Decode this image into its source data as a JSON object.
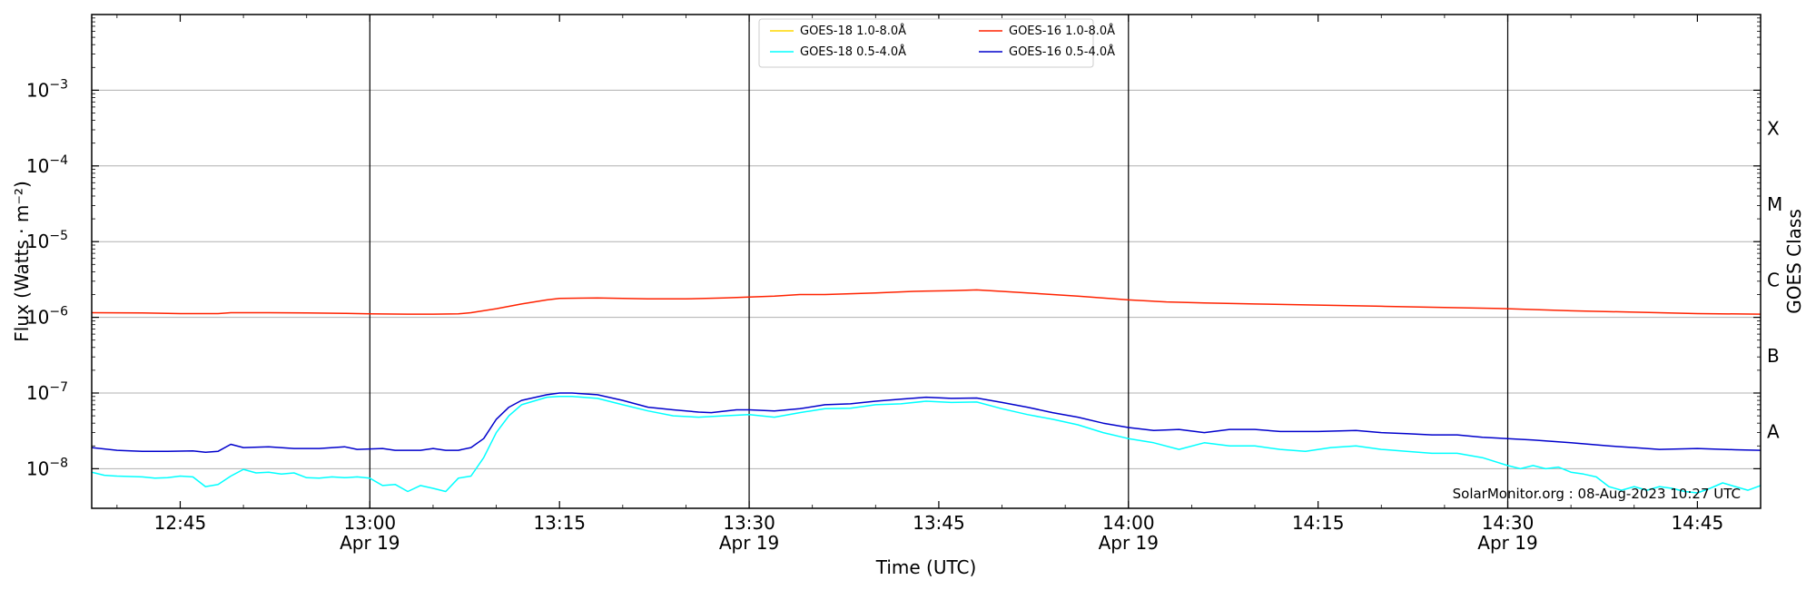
{
  "chart_data": {
    "type": "line",
    "xlabel": "Time (UTC)",
    "ylabel": "Flux (Watts · m⁻²)",
    "right_label": "GOES Class",
    "credit": "SolarMonitor.org : 08-Aug-2023 10:27 UTC",
    "grid": true,
    "x_range": [
      "12:38",
      "14:50"
    ],
    "y_scale": "log",
    "y_range": [
      3e-09,
      0.01
    ],
    "y_ticks": [
      {
        "value": 1e-08,
        "mant": "10",
        "exp": "−8"
      },
      {
        "value": 1e-07,
        "mant": "10",
        "exp": "−7"
      },
      {
        "value": 1e-06,
        "mant": "10",
        "exp": "−6"
      },
      {
        "value": 1e-05,
        "mant": "10",
        "exp": "−5"
      },
      {
        "value": 0.0001,
        "mant": "10",
        "exp": "−4"
      },
      {
        "value": 0.001,
        "mant": "10",
        "exp": "−3"
      }
    ],
    "x_ticks": [
      {
        "time": "12:45",
        "label": "12:45",
        "date": ""
      },
      {
        "time": "13:00",
        "label": "13:00",
        "date": "Apr 19"
      },
      {
        "time": "13:15",
        "label": "13:15",
        "date": ""
      },
      {
        "time": "13:30",
        "label": "13:30",
        "date": "Apr 19"
      },
      {
        "time": "13:45",
        "label": "13:45",
        "date": ""
      },
      {
        "time": "14:00",
        "label": "14:00",
        "date": "Apr 19"
      },
      {
        "time": "14:15",
        "label": "14:15",
        "date": ""
      },
      {
        "time": "14:30",
        "label": "14:30",
        "date": "Apr 19"
      },
      {
        "time": "14:45",
        "label": "14:45",
        "date": ""
      }
    ],
    "vlines": [
      "13:00",
      "13:30",
      "14:00",
      "14:30"
    ],
    "goes_classes": [
      {
        "label": "A",
        "value": 3.2e-08
      },
      {
        "label": "B",
        "value": 3.2e-07
      },
      {
        "label": "C",
        "value": 3.2e-06
      },
      {
        "label": "M",
        "value": 3.2e-05
      },
      {
        "label": "X",
        "value": 0.00032
      }
    ],
    "legend_position": "top-center",
    "legend": [
      {
        "name": "GOES-18 1.0-8.0Å",
        "color": "#ffd700"
      },
      {
        "name": "GOES-18 0.5-4.0Å",
        "color": "#00ffff"
      },
      {
        "name": "GOES-16 1.0-8.0Å",
        "color": "#ff2200"
      },
      {
        "name": "GOES-16 0.5-4.0Å",
        "color": "#0000cc"
      }
    ],
    "series": [
      {
        "name": "GOES-16 1.0-8.0Å",
        "color": "#ff2200",
        "points": [
          [
            "12:38",
            1.15e-06
          ],
          [
            "12:42",
            1.14e-06
          ],
          [
            "12:45",
            1.12e-06
          ],
          [
            "12:48",
            1.12e-06
          ],
          [
            "12:49",
            1.15e-06
          ],
          [
            "12:52",
            1.15e-06
          ],
          [
            "12:55",
            1.14e-06
          ],
          [
            "12:58",
            1.13e-06
          ],
          [
            "13:00",
            1.11e-06
          ],
          [
            "13:03",
            1.1e-06
          ],
          [
            "13:05",
            1.1e-06
          ],
          [
            "13:07",
            1.11e-06
          ],
          [
            "13:08",
            1.15e-06
          ],
          [
            "13:10",
            1.3e-06
          ],
          [
            "13:12",
            1.5e-06
          ],
          [
            "13:14",
            1.7e-06
          ],
          [
            "13:15",
            1.78e-06
          ],
          [
            "13:18",
            1.8e-06
          ],
          [
            "13:20",
            1.78e-06
          ],
          [
            "13:22",
            1.75e-06
          ],
          [
            "13:25",
            1.75e-06
          ],
          [
            "13:28",
            1.8e-06
          ],
          [
            "13:30",
            1.85e-06
          ],
          [
            "13:32",
            1.9e-06
          ],
          [
            "13:34",
            2e-06
          ],
          [
            "13:36",
            2e-06
          ],
          [
            "13:38",
            2.05e-06
          ],
          [
            "13:40",
            2.1e-06
          ],
          [
            "13:43",
            2.2e-06
          ],
          [
            "13:46",
            2.25e-06
          ],
          [
            "13:48",
            2.3e-06
          ],
          [
            "13:50",
            2.2e-06
          ],
          [
            "13:53",
            2.05e-06
          ],
          [
            "13:56",
            1.9e-06
          ],
          [
            "14:00",
            1.7e-06
          ],
          [
            "14:03",
            1.6e-06
          ],
          [
            "14:06",
            1.55e-06
          ],
          [
            "14:10",
            1.5e-06
          ],
          [
            "14:15",
            1.45e-06
          ],
          [
            "14:20",
            1.4e-06
          ],
          [
            "14:25",
            1.35e-06
          ],
          [
            "14:30",
            1.3e-06
          ],
          [
            "14:35",
            1.22e-06
          ],
          [
            "14:40",
            1.17e-06
          ],
          [
            "14:45",
            1.12e-06
          ],
          [
            "14:50",
            1.1e-06
          ]
        ]
      },
      {
        "name": "GOES-16 0.5-4.0Å",
        "color": "#0000cc",
        "points": [
          [
            "12:38",
            1.9e-08
          ],
          [
            "12:40",
            1.75e-08
          ],
          [
            "12:42",
            1.7e-08
          ],
          [
            "12:44",
            1.7e-08
          ],
          [
            "12:46",
            1.72e-08
          ],
          [
            "12:47",
            1.65e-08
          ],
          [
            "12:48",
            1.7e-08
          ],
          [
            "12:49",
            2.1e-08
          ],
          [
            "12:50",
            1.9e-08
          ],
          [
            "12:52",
            1.95e-08
          ],
          [
            "12:54",
            1.85e-08
          ],
          [
            "12:56",
            1.85e-08
          ],
          [
            "12:58",
            1.95e-08
          ],
          [
            "12:59",
            1.8e-08
          ],
          [
            "13:01",
            1.85e-08
          ],
          [
            "13:02",
            1.75e-08
          ],
          [
            "13:04",
            1.75e-08
          ],
          [
            "13:05",
            1.85e-08
          ],
          [
            "13:06",
            1.75e-08
          ],
          [
            "13:07",
            1.75e-08
          ],
          [
            "13:08",
            1.9e-08
          ],
          [
            "13:09",
            2.5e-08
          ],
          [
            "13:10",
            4.5e-08
          ],
          [
            "13:11",
            6.5e-08
          ],
          [
            "13:12",
            8e-08
          ],
          [
            "13:14",
            9.5e-08
          ],
          [
            "13:15",
            1e-07
          ],
          [
            "13:16",
            1e-07
          ],
          [
            "13:18",
            9.5e-08
          ],
          [
            "13:20",
            8e-08
          ],
          [
            "13:22",
            6.5e-08
          ],
          [
            "13:24",
            6e-08
          ],
          [
            "13:26",
            5.6e-08
          ],
          [
            "13:27",
            5.5e-08
          ],
          [
            "13:29",
            6e-08
          ],
          [
            "13:30",
            6e-08
          ],
          [
            "13:32",
            5.8e-08
          ],
          [
            "13:34",
            6.2e-08
          ],
          [
            "13:36",
            7e-08
          ],
          [
            "13:38",
            7.2e-08
          ],
          [
            "13:40",
            7.8e-08
          ],
          [
            "13:42",
            8.3e-08
          ],
          [
            "13:44",
            8.8e-08
          ],
          [
            "13:46",
            8.5e-08
          ],
          [
            "13:48",
            8.6e-08
          ],
          [
            "13:50",
            7.5e-08
          ],
          [
            "13:52",
            6.5e-08
          ],
          [
            "13:54",
            5.5e-08
          ],
          [
            "13:56",
            4.8e-08
          ],
          [
            "13:58",
            4e-08
          ],
          [
            "14:00",
            3.5e-08
          ],
          [
            "14:02",
            3.2e-08
          ],
          [
            "14:04",
            3.3e-08
          ],
          [
            "14:06",
            3e-08
          ],
          [
            "14:08",
            3.3e-08
          ],
          [
            "14:10",
            3.3e-08
          ],
          [
            "14:12",
            3.1e-08
          ],
          [
            "14:15",
            3.1e-08
          ],
          [
            "14:18",
            3.2e-08
          ],
          [
            "14:20",
            3e-08
          ],
          [
            "14:22",
            2.9e-08
          ],
          [
            "14:24",
            2.8e-08
          ],
          [
            "14:26",
            2.8e-08
          ],
          [
            "14:28",
            2.6e-08
          ],
          [
            "14:30",
            2.5e-08
          ],
          [
            "14:32",
            2.4e-08
          ],
          [
            "14:35",
            2.2e-08
          ],
          [
            "14:38",
            2e-08
          ],
          [
            "14:40",
            1.9e-08
          ],
          [
            "14:42",
            1.8e-08
          ],
          [
            "14:45",
            1.85e-08
          ],
          [
            "14:48",
            1.78e-08
          ],
          [
            "14:50",
            1.75e-08
          ]
        ]
      },
      {
        "name": "GOES-18 0.5-4.0Å",
        "color": "#00ffff",
        "points": [
          [
            "12:38",
            9e-09
          ],
          [
            "12:39",
            8.2e-09
          ],
          [
            "12:40",
            8e-09
          ],
          [
            "12:42",
            7.8e-09
          ],
          [
            "12:43",
            7.5e-09
          ],
          [
            "12:44",
            7.6e-09
          ],
          [
            "12:45",
            8e-09
          ],
          [
            "12:46",
            7.8e-09
          ],
          [
            "12:47",
            5.8e-09
          ],
          [
            "12:48",
            6.2e-09
          ],
          [
            "12:49",
            8e-09
          ],
          [
            "12:50",
            9.8e-09
          ],
          [
            "12:51",
            8.8e-09
          ],
          [
            "12:52",
            9e-09
          ],
          [
            "12:53",
            8.5e-09
          ],
          [
            "12:54",
            8.8e-09
          ],
          [
            "12:55",
            7.6e-09
          ],
          [
            "12:56",
            7.5e-09
          ],
          [
            "12:57",
            7.8e-09
          ],
          [
            "12:58",
            7.6e-09
          ],
          [
            "12:59",
            7.8e-09
          ],
          [
            "13:00",
            7.5e-09
          ],
          [
            "13:01",
            6e-09
          ],
          [
            "13:02",
            6.2e-09
          ],
          [
            "13:03",
            5e-09
          ],
          [
            "13:04",
            6e-09
          ],
          [
            "13:05",
            5.5e-09
          ],
          [
            "13:06",
            5e-09
          ],
          [
            "13:07",
            7.5e-09
          ],
          [
            "13:08",
            8e-09
          ],
          [
            "13:09",
            1.4e-08
          ],
          [
            "13:10",
            3e-08
          ],
          [
            "13:11",
            5e-08
          ],
          [
            "13:12",
            7e-08
          ],
          [
            "13:14",
            8.8e-08
          ],
          [
            "13:15",
            9e-08
          ],
          [
            "13:16",
            9e-08
          ],
          [
            "13:18",
            8.5e-08
          ],
          [
            "13:20",
            7e-08
          ],
          [
            "13:22",
            5.8e-08
          ],
          [
            "13:24",
            5e-08
          ],
          [
            "13:26",
            4.8e-08
          ],
          [
            "13:28",
            5e-08
          ],
          [
            "13:30",
            5.2e-08
          ],
          [
            "13:32",
            4.8e-08
          ],
          [
            "13:34",
            5.5e-08
          ],
          [
            "13:36",
            6.2e-08
          ],
          [
            "13:38",
            6.3e-08
          ],
          [
            "13:40",
            7e-08
          ],
          [
            "13:42",
            7.2e-08
          ],
          [
            "13:44",
            7.8e-08
          ],
          [
            "13:46",
            7.5e-08
          ],
          [
            "13:48",
            7.6e-08
          ],
          [
            "13:50",
            6.2e-08
          ],
          [
            "13:52",
            5.2e-08
          ],
          [
            "13:54",
            4.5e-08
          ],
          [
            "13:56",
            3.8e-08
          ],
          [
            "13:58",
            3e-08
          ],
          [
            "14:00",
            2.5e-08
          ],
          [
            "14:02",
            2.2e-08
          ],
          [
            "14:04",
            1.8e-08
          ],
          [
            "14:06",
            2.2e-08
          ],
          [
            "14:08",
            2e-08
          ],
          [
            "14:10",
            2e-08
          ],
          [
            "14:12",
            1.8e-08
          ],
          [
            "14:14",
            1.7e-08
          ],
          [
            "14:16",
            1.9e-08
          ],
          [
            "14:18",
            2e-08
          ],
          [
            "14:20",
            1.8e-08
          ],
          [
            "14:22",
            1.7e-08
          ],
          [
            "14:24",
            1.6e-08
          ],
          [
            "14:26",
            1.6e-08
          ],
          [
            "14:28",
            1.4e-08
          ],
          [
            "14:30",
            1.1e-08
          ],
          [
            "14:31",
            1e-08
          ],
          [
            "14:32",
            1.1e-08
          ],
          [
            "14:33",
            1e-08
          ],
          [
            "14:34",
            1.05e-08
          ],
          [
            "14:35",
            9e-09
          ],
          [
            "14:36",
            8.5e-09
          ],
          [
            "14:37",
            7.8e-09
          ],
          [
            "14:38",
            5.8e-09
          ],
          [
            "14:39",
            5.2e-09
          ],
          [
            "14:40",
            5.8e-09
          ],
          [
            "14:41",
            5.2e-09
          ],
          [
            "14:42",
            5.8e-09
          ],
          [
            "14:43",
            5.5e-09
          ],
          [
            "14:44",
            5e-09
          ],
          [
            "14:45",
            4.8e-09
          ],
          [
            "14:46",
            5.5e-09
          ],
          [
            "14:47",
            6.5e-09
          ],
          [
            "14:48",
            5.8e-09
          ],
          [
            "14:49",
            5.2e-09
          ],
          [
            "14:50",
            6e-09
          ]
        ]
      }
    ]
  }
}
